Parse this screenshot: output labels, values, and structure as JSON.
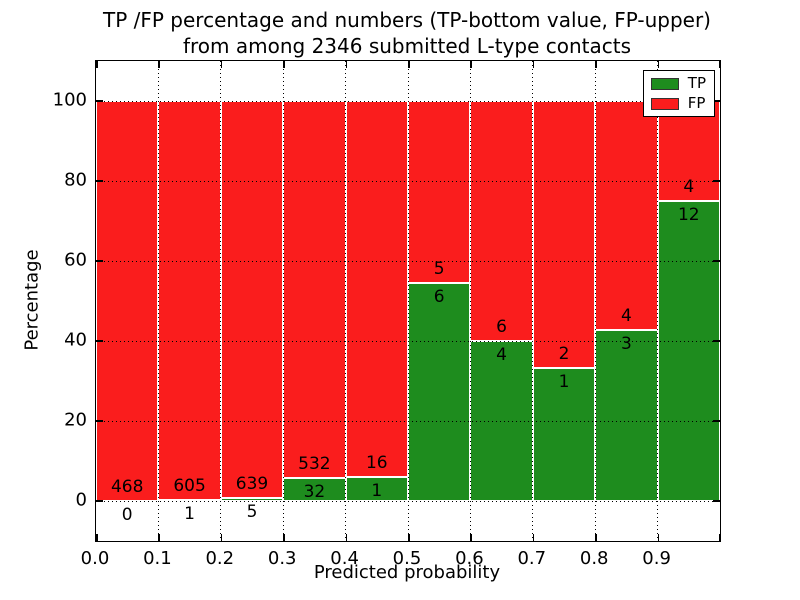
{
  "figure": {
    "background": "#ffffff",
    "frame_color": "#000000"
  },
  "chart_data": {
    "type": "bar",
    "variant": "stacked-percentage-histogram",
    "title_lines": [
      "TP /FP percentage and numbers (TP-bottom value, FP-upper)",
      "from among 2346 submitted L-type contacts"
    ],
    "xlabel": "Predicted probability",
    "ylabel": "Percentage",
    "x_tick_labels": [
      "0.0",
      "0.1",
      "0.2",
      "0.3",
      "0.4",
      "0.5",
      "0.6",
      "0.7",
      "0.8",
      "0.9"
    ],
    "y_ticks": [
      0,
      20,
      40,
      60,
      80,
      100
    ],
    "xlim": [
      0.0,
      1.0
    ],
    "ylim": [
      -10,
      110
    ],
    "bin_width": 0.1,
    "grid": "dotted",
    "categories": [
      "0.0-0.1",
      "0.1-0.2",
      "0.2-0.3",
      "0.3-0.4",
      "0.4-0.5",
      "0.5-0.6",
      "0.6-0.7",
      "0.7-0.8",
      "0.8-0.9",
      "0.9-1.0"
    ],
    "series": [
      {
        "name": "TP",
        "color": "#1e8c1e",
        "values": [
          0,
          1,
          5,
          32,
          1,
          6,
          4,
          1,
          3,
          12
        ]
      },
      {
        "name": "FP",
        "color": "#fa1d1d",
        "values": [
          468,
          605,
          639,
          532,
          16,
          5,
          6,
          2,
          4,
          4
        ]
      }
    ],
    "bar_labels_note": "Each bar is normalized to 100%; TP count printed below the TP/FP boundary, FP count above it",
    "legend": {
      "position": "upper right",
      "entries": [
        "TP",
        "FP"
      ]
    },
    "colors": {
      "tp": "#1e8c1e",
      "fp": "#fa1d1d",
      "grid": "#000000",
      "bar_edge": "#ffffff",
      "text": "#000000"
    }
  }
}
